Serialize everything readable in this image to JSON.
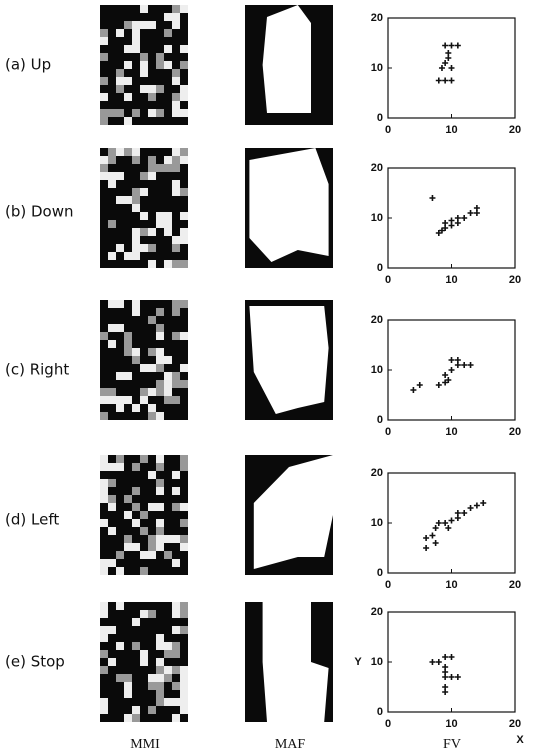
{
  "row_labels": [
    "(a) Up",
    "(b) Down",
    "(c) Right",
    "(d) Left",
    "(e) Stop"
  ],
  "column_labels": [
    "MMI",
    "MAF",
    "FV"
  ],
  "chart_data": [
    {
      "type": "scatter",
      "x": [
        9,
        10,
        11,
        9.5,
        9.5,
        9,
        8.5,
        10,
        8,
        9,
        10
      ],
      "values": [
        14.5,
        14.5,
        14.5,
        13,
        12,
        11,
        10,
        10,
        7.5,
        7.5,
        7.5
      ],
      "color": "#111",
      "xlim": [
        0,
        20
      ],
      "ylim": [
        0,
        20
      ],
      "xticks": [
        0,
        10,
        20
      ],
      "yticks": [
        0,
        10,
        20
      ]
    },
    {
      "type": "scatter",
      "x": [
        7,
        8,
        8.5,
        9,
        9,
        10,
        10,
        11,
        11,
        12,
        13,
        14,
        14
      ],
      "values": [
        14,
        7,
        7.5,
        8,
        9,
        8.5,
        9.5,
        9,
        10,
        10,
        11,
        11,
        12
      ],
      "color": "#111",
      "xlim": [
        0,
        20
      ],
      "ylim": [
        0,
        20
      ],
      "xticks": [
        0,
        10,
        20
      ],
      "yticks": [
        0,
        10,
        20
      ]
    },
    {
      "type": "scatter",
      "x": [
        4,
        5,
        8,
        9,
        9,
        9.5,
        10,
        10,
        11,
        11,
        12,
        13
      ],
      "values": [
        6,
        7,
        7,
        7.5,
        9,
        8,
        10,
        12,
        12,
        11,
        11,
        11
      ],
      "color": "#111",
      "xlim": [
        0,
        20
      ],
      "ylim": [
        0,
        20
      ],
      "xticks": [
        0,
        10,
        20
      ],
      "yticks": [
        0,
        10,
        20
      ]
    },
    {
      "type": "scatter",
      "x": [
        6,
        6,
        7,
        7.5,
        7.5,
        8,
        9,
        9.5,
        10,
        11,
        11,
        12,
        13,
        14,
        15
      ],
      "values": [
        5,
        7,
        7.5,
        6,
        9,
        10,
        10,
        9,
        10.5,
        11,
        12,
        12,
        13,
        13.5,
        14
      ],
      "color": "#111",
      "xlim": [
        0,
        20
      ],
      "ylim": [
        0,
        20
      ],
      "xticks": [
        0,
        10,
        20
      ],
      "yticks": [
        0,
        10,
        20
      ]
    },
    {
      "type": "scatter",
      "xlabel": "X",
      "ylabel": "Y",
      "x": [
        7,
        8,
        9,
        9,
        9,
        9,
        9,
        9,
        10,
        10,
        11
      ],
      "values": [
        10,
        10,
        11,
        9,
        8,
        7,
        5,
        4,
        11,
        7,
        7
      ],
      "color": "#111",
      "xlim": [
        0,
        20
      ],
      "ylim": [
        0,
        20
      ],
      "xticks": [
        0,
        10,
        20
      ],
      "yticks": [
        0,
        10,
        20
      ]
    }
  ]
}
